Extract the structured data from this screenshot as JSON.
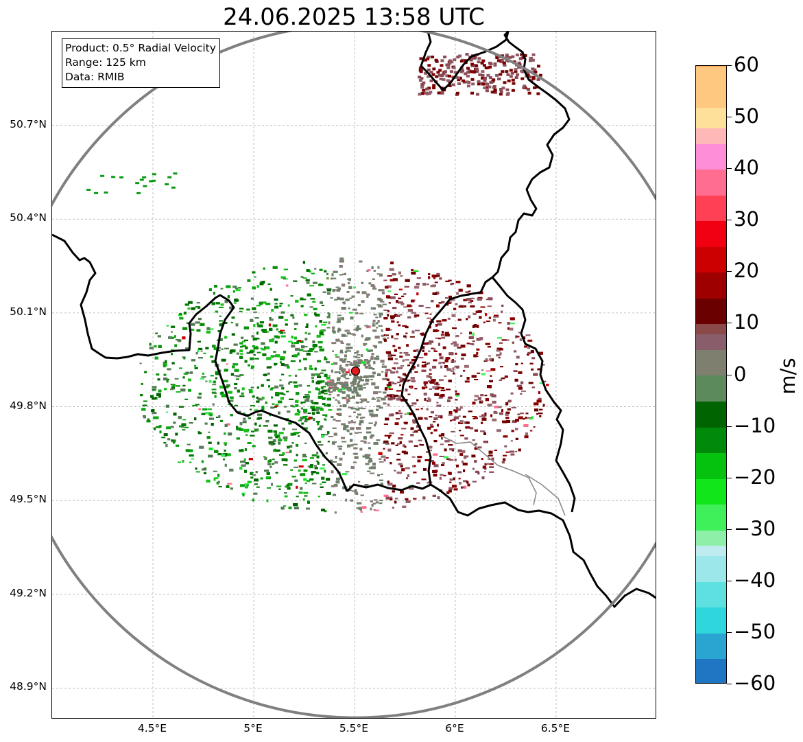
{
  "title": "24.06.2025 13:58 UTC",
  "info_box": {
    "product": "Product: 0.5° Radial Velocity",
    "range": "Range: 125 km",
    "source": "Data: RMIB"
  },
  "map": {
    "lon_range": [
      4.0,
      7.0
    ],
    "lat_range": [
      48.8,
      51.0
    ],
    "x_ticks": [
      {
        "lon": 4.5,
        "label": "4.5°E"
      },
      {
        "lon": 5.0,
        "label": "5°E"
      },
      {
        "lon": 5.5,
        "label": "5.5°E"
      },
      {
        "lon": 6.0,
        "label": "6°E"
      },
      {
        "lon": 6.5,
        "label": "6.5°E"
      }
    ],
    "y_ticks": [
      {
        "lat": 50.7,
        "label": "50.7°N"
      },
      {
        "lat": 50.4,
        "label": "50.4°N"
      },
      {
        "lat": 50.1,
        "label": "50.1°N"
      },
      {
        "lat": 49.8,
        "label": "49.8°N"
      },
      {
        "lat": 49.5,
        "label": "49.5°N"
      },
      {
        "lat": 49.2,
        "label": "49.2°N"
      },
      {
        "lat": 48.9,
        "label": "48.9°N"
      }
    ],
    "radar_site": {
      "lon": 5.505,
      "lat": 49.914
    },
    "range_ring_km": 125,
    "colors": {
      "ring": "#808080",
      "border": "#000000",
      "grid": "#b0b0b0",
      "site_marker": "#e41a1c"
    }
  },
  "colorbar": {
    "label": "m/s",
    "min": -60,
    "max": 60,
    "ticks": [
      {
        "value": 60,
        "label": "60"
      },
      {
        "value": 50,
        "label": "50"
      },
      {
        "value": 40,
        "label": "40"
      },
      {
        "value": 30,
        "label": "30"
      },
      {
        "value": 20,
        "label": "20"
      },
      {
        "value": 10,
        "label": "10"
      },
      {
        "value": 0,
        "label": "0"
      },
      {
        "value": -10,
        "label": "−10"
      },
      {
        "value": -20,
        "label": "−20"
      },
      {
        "value": -30,
        "label": "−30"
      },
      {
        "value": -40,
        "label": "−40"
      },
      {
        "value": -50,
        "label": "−50"
      },
      {
        "value": -60,
        "label": "−60"
      }
    ],
    "stops": [
      {
        "value": -60,
        "color": "#1f77c4"
      },
      {
        "value": -55,
        "color": "#2aa5d2"
      },
      {
        "value": -50,
        "color": "#2fd7dc"
      },
      {
        "value": -45,
        "color": "#5fe0e0"
      },
      {
        "value": -40,
        "color": "#9be7ea"
      },
      {
        "value": -35,
        "color": "#bdebef"
      },
      {
        "value": -33,
        "color": "#8ef0a8"
      },
      {
        "value": -30,
        "color": "#3ff05a"
      },
      {
        "value": -25,
        "color": "#10e61a"
      },
      {
        "value": -20,
        "color": "#05c20e"
      },
      {
        "value": -15,
        "color": "#008a0a"
      },
      {
        "value": -10,
        "color": "#006400"
      },
      {
        "value": -5,
        "color": "#5d8a5d"
      },
      {
        "value": 0,
        "color": "#7f7f70"
      },
      {
        "value": 5,
        "color": "#8a5d6a"
      },
      {
        "value": 8,
        "color": "#8a4a4a"
      },
      {
        "value": 10,
        "color": "#6a0000"
      },
      {
        "value": 15,
        "color": "#9e0000"
      },
      {
        "value": 20,
        "color": "#cc0000"
      },
      {
        "value": 25,
        "color": "#f00010"
      },
      {
        "value": 30,
        "color": "#ff4055"
      },
      {
        "value": 35,
        "color": "#ff6e90"
      },
      {
        "value": 40,
        "color": "#ff8ed8"
      },
      {
        "value": 45,
        "color": "#ffb8b8"
      },
      {
        "value": 48,
        "color": "#ffe09a"
      },
      {
        "value": 52,
        "color": "#ffc880"
      },
      {
        "value": 60,
        "color": "#ff9a52"
      }
    ]
  }
}
